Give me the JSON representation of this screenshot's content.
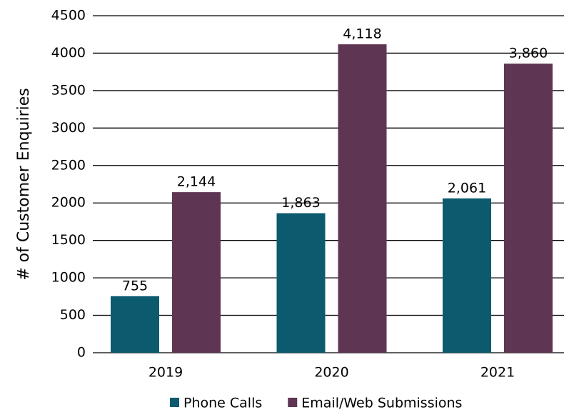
{
  "chart_data": {
    "type": "bar",
    "y_label": "# of Customer Enquiries",
    "categories": [
      "2019",
      "2020",
      "2021"
    ],
    "series": [
      {
        "name": "Phone Calls",
        "color": "#0b5a6e",
        "values": [
          755,
          1863,
          2061
        ],
        "value_labels": [
          "755",
          "1,863",
          "2,061"
        ]
      },
      {
        "name": "Email/Web Submissions",
        "color": "#5e3553",
        "values": [
          2144,
          4118,
          3860
        ],
        "value_labels": [
          "2,144",
          "4,118",
          "3,860"
        ]
      }
    ],
    "ylim": [
      0,
      4500
    ],
    "yticks": [
      0,
      500,
      1000,
      1500,
      2000,
      2500,
      3000,
      3500,
      4000,
      4500
    ],
    "grid": true,
    "legend": "bottom"
  }
}
